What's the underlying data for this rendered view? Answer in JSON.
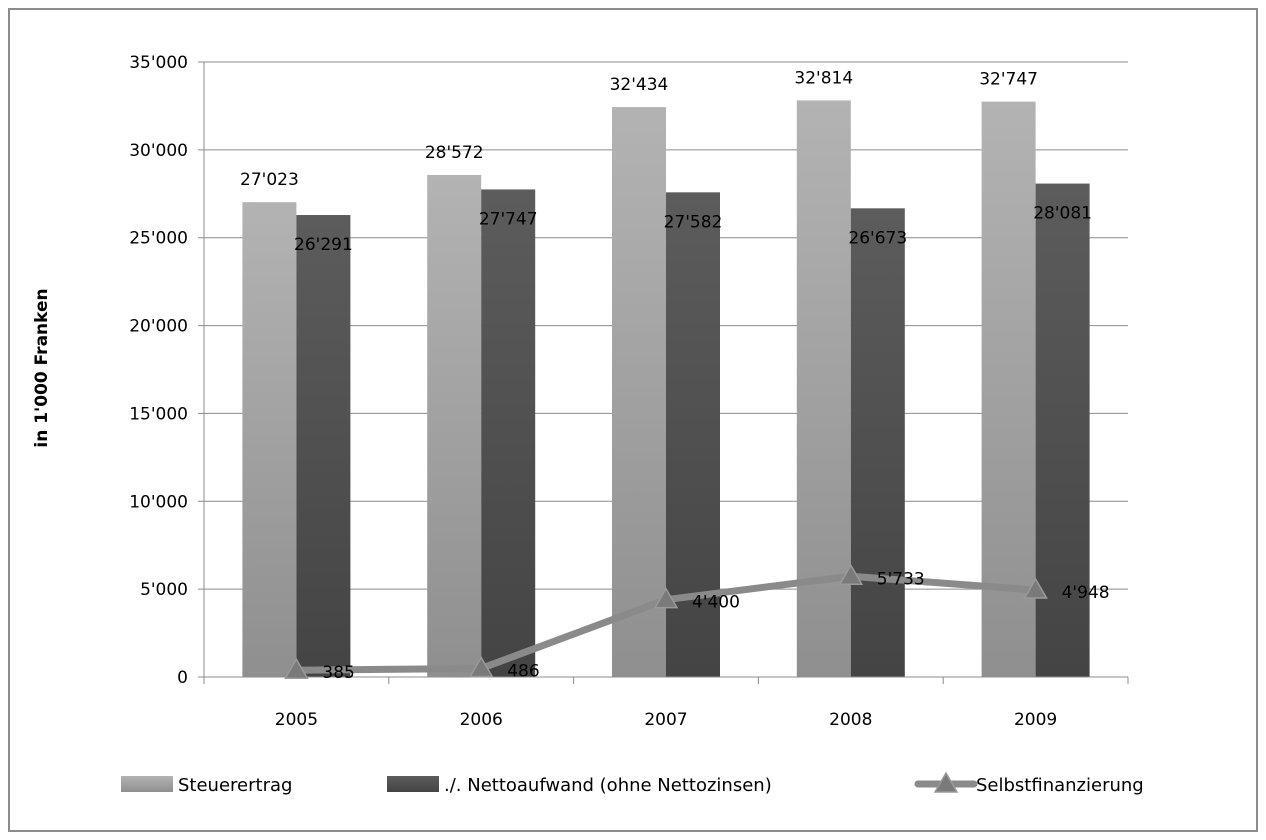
{
  "chart_data": {
    "type": "bar",
    "title": "",
    "xlabel": "",
    "ylabel": "in 1'000 Franken",
    "ylim": [
      0,
      35000
    ],
    "y_ticks": [
      "0",
      "5'000",
      "10'000",
      "15'000",
      "20'000",
      "25'000",
      "30'000",
      "35'000"
    ],
    "y_tick_values": [
      0,
      5000,
      10000,
      15000,
      20000,
      25000,
      30000,
      35000
    ],
    "grid": true,
    "legend_position": "bottom",
    "categories": [
      "2005",
      "2006",
      "2007",
      "2008",
      "2009"
    ],
    "series": [
      {
        "name": "Steuerertrag",
        "type": "bar",
        "color": "#a6a6a6",
        "values": [
          27023,
          28572,
          32434,
          32814,
          32747
        ],
        "labels": [
          "27'023",
          "28'572",
          "32'434",
          "32'814",
          "32'747"
        ]
      },
      {
        "name": "./. Nettoaufwand (ohne Nettozinsen)",
        "type": "bar",
        "color": "#505050",
        "values": [
          26291,
          27747,
          27582,
          26673,
          28081
        ],
        "labels": [
          "26'291",
          "27'747",
          "27'582",
          "26'673",
          "28'081"
        ]
      },
      {
        "name": "Selbstfinanzierung",
        "type": "line",
        "marker": "triangle",
        "color": "#8a8a8a",
        "values": [
          385,
          486,
          4400,
          5733,
          4948
        ],
        "labels": [
          "385",
          "486",
          "4'400",
          "5'733",
          "4'948"
        ]
      }
    ]
  }
}
